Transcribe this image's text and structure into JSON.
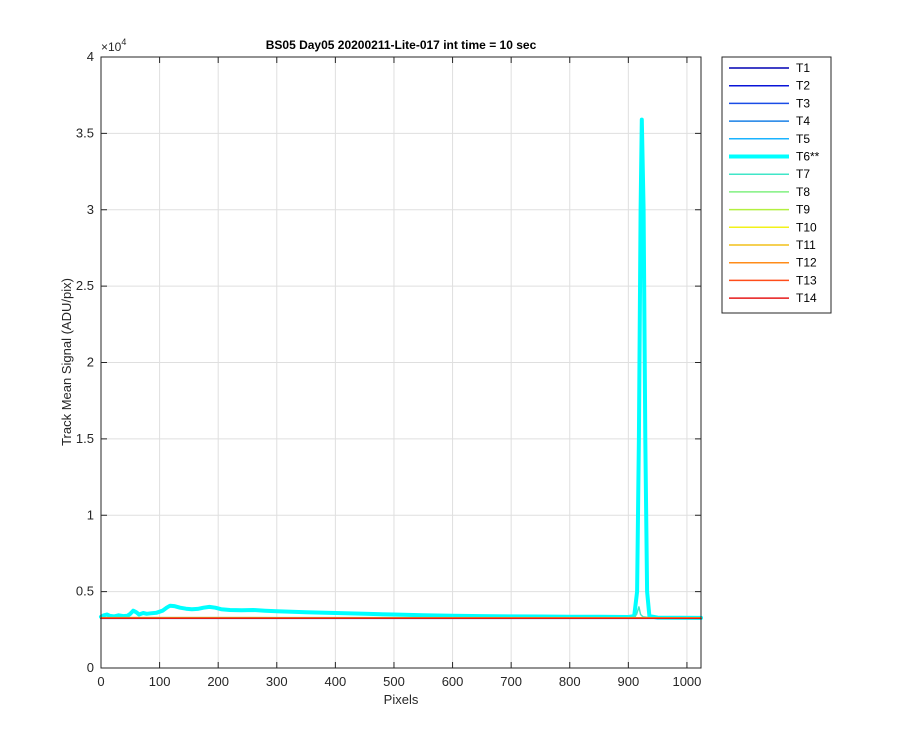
{
  "chart_data": {
    "type": "line",
    "title": "BS05 Day05 20200211-Lite-017 int time = 10 sec",
    "xlabel": "Pixels",
    "ylabel": "Track Mean Signal (ADU/pix)",
    "y_exponent_label": "×10",
    "y_exponent_power": "4",
    "xlim": [
      0,
      1024
    ],
    "ylim": [
      0,
      40000
    ],
    "x_ticks": [
      0,
      100,
      200,
      300,
      400,
      500,
      600,
      700,
      800,
      900,
      1000
    ],
    "x_tick_labels": [
      "0",
      "100",
      "200",
      "300",
      "400",
      "500",
      "600",
      "700",
      "800",
      "900",
      "1000"
    ],
    "y_ticks": [
      0,
      5000,
      10000,
      15000,
      20000,
      25000,
      30000,
      35000,
      40000
    ],
    "y_tick_labels": [
      "0",
      "0.5",
      "1",
      "1.5",
      "2",
      "2.5",
      "3",
      "3.5",
      "4"
    ],
    "grid": true,
    "legend_position": "outside-right-top",
    "series": [
      {
        "name": "T1",
        "color": "#0000b3",
        "highlight": false,
        "points": [
          [
            0,
            3260
          ],
          [
            1024,
            3260
          ]
        ]
      },
      {
        "name": "T2",
        "color": "#0a14d8",
        "highlight": false,
        "points": [
          [
            0,
            3255
          ],
          [
            1024,
            3255
          ]
        ]
      },
      {
        "name": "T3",
        "color": "#1a4de6",
        "highlight": false,
        "points": [
          [
            0,
            3265
          ],
          [
            1024,
            3265
          ]
        ]
      },
      {
        "name": "T4",
        "color": "#1a80e6",
        "highlight": false,
        "points": [
          [
            0,
            3250
          ],
          [
            1024,
            3250
          ]
        ]
      },
      {
        "name": "T5",
        "color": "#1ab3ff",
        "highlight": false,
        "points": [
          [
            0,
            3270
          ],
          [
            1024,
            3270
          ]
        ]
      },
      {
        "name": "T6**",
        "color": "#00ffff",
        "highlight": true,
        "points": [
          [
            0,
            3350
          ],
          [
            5,
            3450
          ],
          [
            10,
            3500
          ],
          [
            15,
            3420
          ],
          [
            22,
            3380
          ],
          [
            30,
            3450
          ],
          [
            38,
            3400
          ],
          [
            45,
            3420
          ],
          [
            50,
            3550
          ],
          [
            55,
            3750
          ],
          [
            60,
            3650
          ],
          [
            65,
            3500
          ],
          [
            72,
            3600
          ],
          [
            78,
            3550
          ],
          [
            85,
            3580
          ],
          [
            95,
            3620
          ],
          [
            105,
            3750
          ],
          [
            112,
            3950
          ],
          [
            118,
            4080
          ],
          [
            125,
            4050
          ],
          [
            135,
            3950
          ],
          [
            145,
            3880
          ],
          [
            155,
            3850
          ],
          [
            165,
            3870
          ],
          [
            175,
            3950
          ],
          [
            185,
            4000
          ],
          [
            195,
            3950
          ],
          [
            205,
            3850
          ],
          [
            220,
            3800
          ],
          [
            240,
            3780
          ],
          [
            260,
            3800
          ],
          [
            280,
            3750
          ],
          [
            300,
            3720
          ],
          [
            350,
            3650
          ],
          [
            400,
            3600
          ],
          [
            450,
            3550
          ],
          [
            500,
            3500
          ],
          [
            550,
            3450
          ],
          [
            600,
            3420
          ],
          [
            650,
            3400
          ],
          [
            700,
            3380
          ],
          [
            750,
            3370
          ],
          [
            800,
            3360
          ],
          [
            850,
            3350
          ],
          [
            900,
            3340
          ],
          [
            910,
            3400
          ],
          [
            915,
            5000
          ],
          [
            918,
            15000
          ],
          [
            921,
            30000
          ],
          [
            923,
            35900
          ],
          [
            926,
            30000
          ],
          [
            929,
            15000
          ],
          [
            932,
            5000
          ],
          [
            936,
            3400
          ],
          [
            950,
            3300
          ],
          [
            1024,
            3280
          ]
        ]
      },
      {
        "name": "T7",
        "color": "#40e6c8",
        "highlight": false,
        "points": [
          [
            0,
            3300
          ],
          [
            900,
            3300
          ],
          [
            910,
            3350
          ],
          [
            914,
            3500
          ],
          [
            918,
            4000
          ],
          [
            921,
            3500
          ],
          [
            925,
            3350
          ],
          [
            935,
            3300
          ],
          [
            1024,
            3280
          ]
        ]
      },
      {
        "name": "T8",
        "color": "#80f080",
        "highlight": false,
        "points": [
          [
            0,
            3280
          ],
          [
            1024,
            3280
          ]
        ]
      },
      {
        "name": "T9",
        "color": "#b3f040",
        "highlight": false,
        "points": [
          [
            0,
            3275
          ],
          [
            1024,
            3275
          ]
        ]
      },
      {
        "name": "T10",
        "color": "#f2f21a",
        "highlight": false,
        "points": [
          [
            0,
            3285
          ],
          [
            1024,
            3285
          ]
        ]
      },
      {
        "name": "T11",
        "color": "#f2c01a",
        "highlight": false,
        "points": [
          [
            0,
            3290
          ],
          [
            150,
            3300
          ],
          [
            300,
            3290
          ],
          [
            1024,
            3270
          ]
        ]
      },
      {
        "name": "T12",
        "color": "#ff8c1a",
        "highlight": false,
        "points": [
          [
            0,
            3265
          ],
          [
            1024,
            3265
          ]
        ]
      },
      {
        "name": "T13",
        "color": "#ff4d1a",
        "highlight": false,
        "points": [
          [
            0,
            3258
          ],
          [
            1024,
            3258
          ]
        ]
      },
      {
        "name": "T14",
        "color": "#e61a1a",
        "highlight": false,
        "points": [
          [
            0,
            3262
          ],
          [
            1024,
            3262
          ]
        ]
      }
    ]
  }
}
